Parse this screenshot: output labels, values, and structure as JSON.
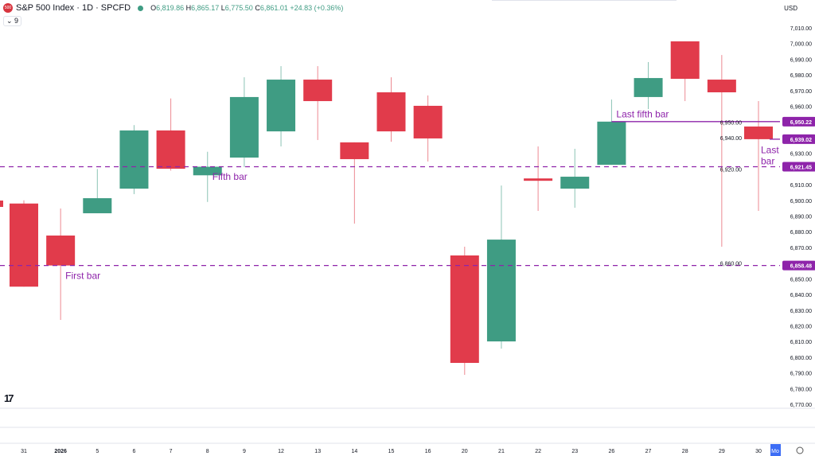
{
  "header": {
    "symbol": "S&P 500 Index · 1D · SPCFD",
    "logo_text": "500",
    "open_label": "O",
    "open": "6,819.86",
    "high_label": "H",
    "high": "6,865.17",
    "low_label": "L",
    "low": "6,775.50",
    "close_label": "C",
    "close": "6,861.01",
    "change": "+24.83 (+0.36%)"
  },
  "indicators_toggle": "⌄ 9",
  "currency": "USD",
  "colors": {
    "up": "#3f9c83",
    "down": "#e13b4b",
    "level": "#8e24aa"
  },
  "chart_data": {
    "type": "candlestick",
    "ylim": [
      6765,
      7015
    ],
    "y_ticks": [
      7010,
      7000,
      6990,
      6980,
      6970,
      6960,
      6950,
      6940,
      6930,
      6920,
      6910,
      6900,
      6890,
      6880,
      6870,
      6860,
      6850,
      6840,
      6830,
      6820,
      6810,
      6800,
      6790,
      6780,
      6770
    ],
    "x_labels": [
      "31",
      "2026",
      "5",
      "6",
      "7",
      "8",
      "9",
      "12",
      "13",
      "14",
      "15",
      "16",
      "20",
      "21",
      "22",
      "23",
      "26",
      "27",
      "28",
      "29",
      "30"
    ],
    "candles": [
      {
        "x": "31",
        "o": 6898,
        "h": 6900,
        "l": 6845,
        "c": 6845
      },
      {
        "x": "2026",
        "o": 6877.6,
        "h": 6894.8,
        "l": 6823.8,
        "c": 6858.5
      },
      {
        "x": "5",
        "o": 6891.8,
        "h": 6920,
        "l": 6891.8,
        "c": 6901.4
      },
      {
        "x": "6",
        "o": 6907.5,
        "h": 6948,
        "l": 6904,
        "c": 6944.6
      },
      {
        "x": "7",
        "o": 6944.6,
        "h": 6965,
        "l": 6919,
        "c": 6920.2
      },
      {
        "x": "8",
        "o": 6916,
        "h": 6931,
        "l": 6899,
        "c": 6921.45
      },
      {
        "x": "9",
        "o": 6927.3,
        "h": 6978.5,
        "l": 6921.2,
        "c": 6965.9
      },
      {
        "x": "12",
        "o": 6944,
        "h": 6985.6,
        "l": 6934.4,
        "c": 6977
      },
      {
        "x": "13",
        "o": 6977,
        "h": 6985.6,
        "l": 6938.5,
        "c": 6963.3
      },
      {
        "x": "14",
        "o": 6937,
        "h": 6937,
        "l": 6885.2,
        "c": 6926.3
      },
      {
        "x": "15",
        "o": 6968.9,
        "h": 6978.5,
        "l": 6937.4,
        "c": 6944
      },
      {
        "x": "16",
        "o": 6960.3,
        "h": 6966.9,
        "l": 6924.8,
        "c": 6939.5
      },
      {
        "x": "20",
        "o": 6864.9,
        "h": 6870.5,
        "l": 6788.8,
        "c": 6796.4
      },
      {
        "x": "21",
        "o": 6810.1,
        "h": 6909.5,
        "l": 6805.5,
        "c": 6875
      },
      {
        "x": "22",
        "o": 6914,
        "h": 6934.4,
        "l": 6893.3,
        "c": 6912.5
      },
      {
        "x": "23",
        "o": 6907.5,
        "h": 6932.9,
        "l": 6895.3,
        "c": 6915.1
      },
      {
        "x": "26",
        "o": 6922.7,
        "h": 6964.3,
        "l": 6922.7,
        "c": 6950.22
      },
      {
        "x": "27",
        "o": 6965.9,
        "h": 6988.2,
        "l": 6958.2,
        "c": 6978
      },
      {
        "x": "28",
        "o": 7001.4,
        "h": 7001.4,
        "l": 6963.3,
        "c": 6977.5
      },
      {
        "x": "29",
        "o": 6977,
        "h": 6992.7,
        "l": 6870.5,
        "c": 6968.9
      },
      {
        "x": "30",
        "o": 6947.1,
        "h": 6963.3,
        "l": 6893.3,
        "c": 6939.02
      }
    ],
    "levels": [
      {
        "name": "Last fifth bar",
        "value": 6950.22,
        "label": "6,950.22",
        "from": "26",
        "style": "solid"
      },
      {
        "name": "Last bar",
        "value": 6939.02,
        "label": "6,939.02",
        "from": "30",
        "style": "solid"
      },
      {
        "name": "Fifth bar",
        "value": 6921.45,
        "label": "6,921.45",
        "from": "start",
        "style": "dashed"
      },
      {
        "name": "First bar",
        "value": 6858.48,
        "label": "6,858.48",
        "from": "start",
        "style": "dashed"
      }
    ],
    "annotations": [
      {
        "text": "First bar",
        "at": "2026",
        "value": 6852
      },
      {
        "text": "Fifth bar",
        "at": "8",
        "value": 6915
      },
      {
        "text": "Last fifth bar",
        "at": "26",
        "value": 6955
      },
      {
        "text": "Last",
        "at": "30",
        "value": 6932
      },
      {
        "text": "bar",
        "at": "30",
        "value": 6925
      }
    ],
    "current_date_label": "Mo"
  }
}
